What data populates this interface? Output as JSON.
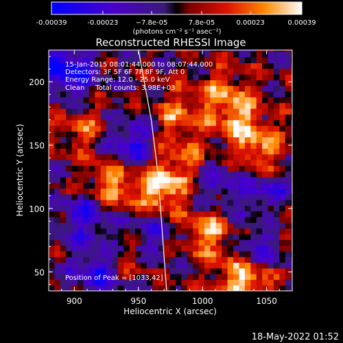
{
  "chart_data": {
    "type": "heatmap",
    "title": "Reconstructed RHESSI Image",
    "xlabel": "Heliocentric X (arcsec)",
    "ylabel": "Heliocentric Y (arcsec)",
    "xlim": [
      880,
      1070
    ],
    "ylim": [
      35,
      225
    ],
    "x_ticks": [
      900,
      950,
      1000,
      1050
    ],
    "y_ticks": [
      50,
      100,
      150,
      200
    ],
    "x_tick_labels": [
      "900",
      "950",
      "1000",
      "1050"
    ],
    "y_tick_labels": [
      "50",
      "100",
      "150",
      "200"
    ],
    "colorbar": {
      "range": [
        -0.00039,
        0.00039
      ],
      "tick_values": [
        -0.00039,
        -0.00023,
        -7.8e-05,
        7.8e-05,
        0.00023,
        0.00039
      ],
      "tick_labels": [
        "-0.00039",
        "-0.00023",
        "−7.8e-05",
        "7.8e-05",
        "0.00023",
        "0.00039"
      ],
      "unit_label": "(photons cm⁻² s⁻¹ asec⁻²)"
    },
    "annotations": {
      "time_range": "15-Jan-2015 08:01:44.000 to 08:07:44.000",
      "detectors": "Detectors: 3F 5F 6F 7F 8F 9F, Att 0",
      "energy_range": "Energy Range: 12.0 - 25.0 keV",
      "clean_counts": "Clean     Total counts: 3.98E+03",
      "peak_position": "Position of Peak = [1033,42]"
    },
    "limb_curve": [
      [
        950,
        225
      ],
      [
        960,
        170
      ],
      [
        965,
        130
      ],
      [
        968,
        90
      ],
      [
        972,
        35
      ]
    ],
    "peak": [
      1033,
      42
    ],
    "bright_regions": [
      {
        "x": 967,
        "y": 115,
        "value": 0.00039
      },
      {
        "x": 1033,
        "y": 42,
        "value": 0.00039
      },
      {
        "x": 928,
        "y": 120,
        "value": 0.0003
      },
      {
        "x": 1005,
        "y": 80,
        "value": 0.00028
      },
      {
        "x": 1045,
        "y": 145,
        "value": 0.00025
      },
      {
        "x": 1030,
        "y": 170,
        "value": 0.00024
      },
      {
        "x": 1015,
        "y": 190,
        "value": 0.00022
      },
      {
        "x": 980,
        "y": 175,
        "value": 0.0002
      },
      {
        "x": 905,
        "y": 165,
        "value": 0.00018
      },
      {
        "x": 985,
        "y": 140,
        "value": 0.0002
      },
      {
        "x": 940,
        "y": 60,
        "value": 0.00016
      },
      {
        "x": 1055,
        "y": 95,
        "value": 0.00018
      }
    ],
    "dark_regions": [
      {
        "x": 895,
        "y": 210,
        "value": -0.00039
      },
      {
        "x": 945,
        "y": 150,
        "value": -0.00028
      },
      {
        "x": 910,
        "y": 95,
        "value": -0.00026
      },
      {
        "x": 1050,
        "y": 110,
        "value": -0.00028
      },
      {
        "x": 1045,
        "y": 70,
        "value": -0.00024
      },
      {
        "x": 920,
        "y": 50,
        "value": -0.0003
      },
      {
        "x": 960,
        "y": 80,
        "value": -0.00022
      },
      {
        "x": 1010,
        "y": 120,
        "value": -0.0002
      }
    ],
    "grid": false
  },
  "footer": {
    "timestamp": "18-May-2022 01:52"
  }
}
